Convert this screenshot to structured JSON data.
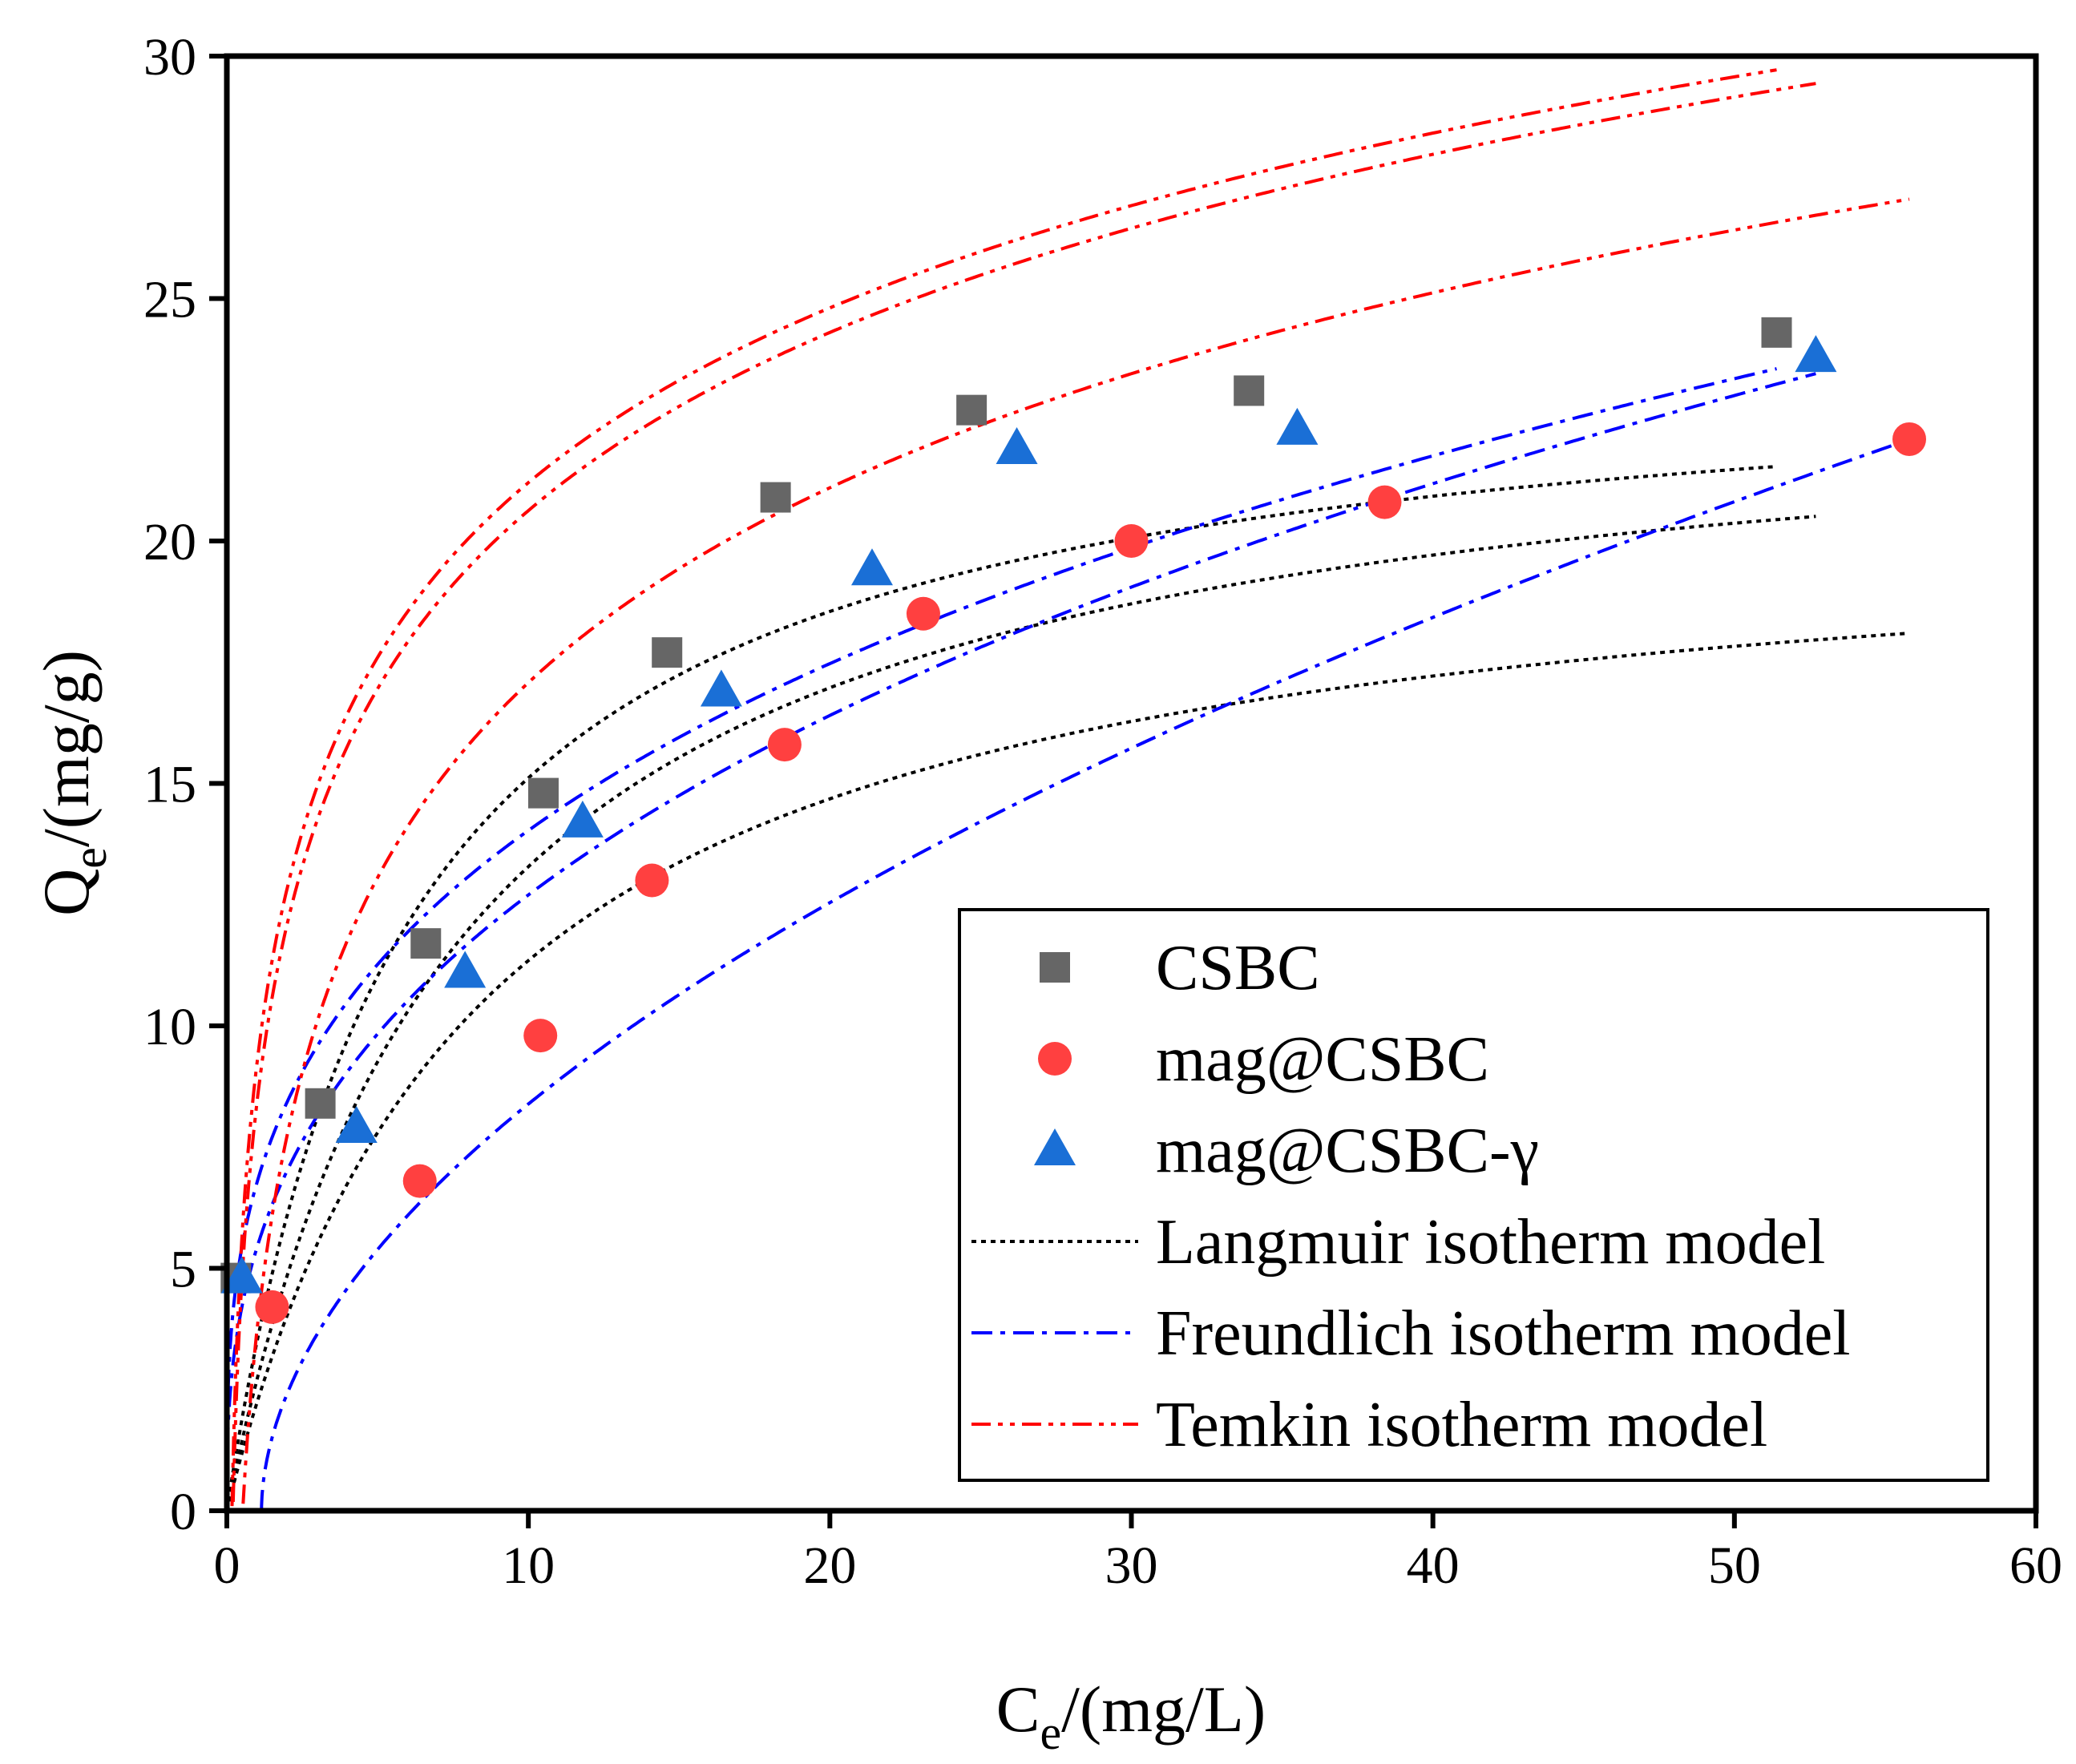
{
  "chart_data": {
    "type": "scatter",
    "title": "",
    "xlabel": "Ce/(mg/L)",
    "ylabel": "Qe/(mg/g)",
    "xlabel_parts": {
      "main": "C",
      "sub": "e",
      "rest": "/(mg/L)"
    },
    "ylabel_parts": {
      "main": "Q",
      "sub": "e",
      "rest": "/(mg/g)"
    },
    "xlim": [
      0,
      60
    ],
    "ylim": [
      0,
      30
    ],
    "xticks": [
      "0",
      "10",
      "20",
      "30",
      "40",
      "50",
      "60"
    ],
    "yticks": [
      "0",
      "5",
      "10",
      "15",
      "20",
      "25",
      "30"
    ],
    "grid": false,
    "legend_position": "bottom-right",
    "series": [
      {
        "name": "CSBC",
        "marker": "square",
        "color": "#666666",
        "x": [
          0.3,
          3.1,
          6.6,
          10.5,
          14.6,
          18.2,
          24.7,
          33.9,
          51.4
        ],
        "y": [
          4.8,
          8.4,
          11.7,
          14.8,
          17.7,
          20.9,
          22.7,
          23.1,
          24.3
        ]
      },
      {
        "name": "mag@CSBC",
        "marker": "circle",
        "color": "#ff4040",
        "x": [
          1.5,
          6.4,
          10.4,
          14.1,
          18.5,
          23.1,
          30.0,
          38.4,
          55.8
        ],
        "y": [
          4.2,
          6.8,
          9.8,
          13.0,
          15.8,
          18.5,
          20.0,
          20.8,
          22.1
        ]
      },
      {
        "name": "mag@CSBC-γ",
        "marker": "triangle",
        "color": "#1a6fd6",
        "x": [
          0.5,
          4.3,
          7.9,
          11.8,
          16.4,
          21.4,
          26.2,
          35.5,
          52.7
        ],
        "y": [
          4.8,
          7.9,
          11.1,
          14.2,
          16.9,
          19.4,
          21.9,
          22.3,
          23.8
        ]
      }
    ],
    "model_curves": [
      {
        "model": "Langmuir",
        "legend": "Langmuir isotherm model",
        "color": "#000000",
        "dash": "dotted",
        "curves": [
          {
            "fit_of": "CSBC",
            "qm": 24.0,
            "kl": 0.17,
            "xmax": 51.4
          },
          {
            "fit_of": "mag@CSBC-γ",
            "qm": 23.5,
            "kl": 0.13,
            "xmax": 52.7
          },
          {
            "fit_of": "mag@CSBC",
            "qm": 20.8,
            "kl": 0.12,
            "xmax": 55.8
          }
        ]
      },
      {
        "model": "Freundlich",
        "legend": "Freundlich isotherm model",
        "color": "#0000ff",
        "dash": "dashdot",
        "curves": [
          {
            "fit_of": "CSBC",
            "kf": 6.77,
            "n": 3.16,
            "xmax": 51.4
          },
          {
            "fit_of": "mag@CSBC-γ",
            "kf": 5.43,
            "n": 2.71,
            "xmax": 52.7
          },
          {
            "fit_of": "mag@CSBC",
            "kf": 2.63,
            "n": 1.88,
            "x0": 1.15,
            "xmax": 55.8
          }
        ]
      },
      {
        "model": "Temkin",
        "legend": "Temkin isotherm model",
        "color": "#ff0000",
        "dash": "dashdotdot",
        "curves": [
          {
            "fit_of": "CSBC",
            "a": 5.9,
            "b": 5.2,
            "xmax": 51.4
          },
          {
            "fit_of": "mag@CSBC-γ",
            "a": 4.9,
            "b": 5.3,
            "xmax": 52.7
          },
          {
            "fit_of": "mag@CSBC",
            "a": 1.9,
            "b": 5.8,
            "xmax": 55.8
          }
        ]
      }
    ]
  },
  "legend": {
    "entries": [
      {
        "label": "CSBC",
        "kind": "square",
        "color": "#666666"
      },
      {
        "label": "mag@CSBC",
        "kind": "circle",
        "color": "#ff4040"
      },
      {
        "label": "mag@CSBC-γ",
        "kind": "triangle",
        "color": "#1a6fd6"
      },
      {
        "label": "Langmuir isotherm model",
        "kind": "line",
        "color": "#000000",
        "dash": "dotted"
      },
      {
        "label": "Freundlich isotherm model",
        "kind": "line",
        "color": "#0000ff",
        "dash": "dashdot"
      },
      {
        "label": "Temkin isotherm model",
        "kind": "line",
        "color": "#ff0000",
        "dash": "dashdotdot"
      }
    ]
  }
}
